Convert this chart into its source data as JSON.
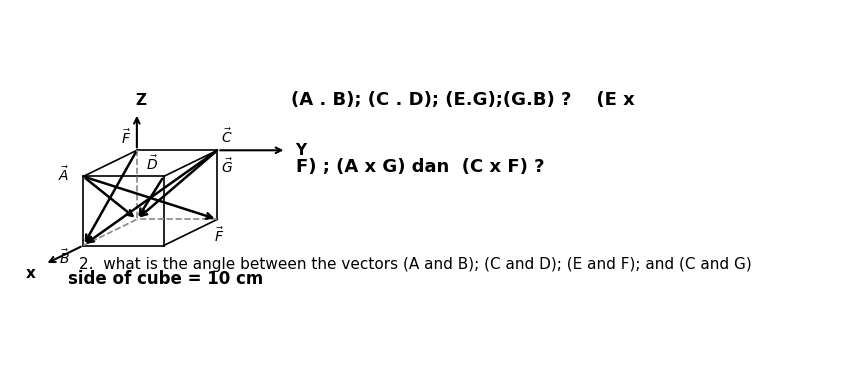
{
  "figsize": [
    8.51,
    3.79
  ],
  "dpi": 100,
  "bg_color": "#ffffff",
  "text_side_of_cube": "side of cube = 10 cm",
  "text_line1": "(A . B); (C . D); (E.G);(G.B) ?    (E x",
  "text_line2": "F) ; (A x G) dan  (C x F) ?",
  "text_line3": "2.  what is the angle between the vectors (A and B); (C and D); (E and F); and (C and G)",
  "label_Z": "Z",
  "label_Y": "Y",
  "label_X": "x",
  "label_A": "$\\vec{A}$",
  "label_B": "$\\vec{B}$",
  "label_C": "$\\vec{C}$",
  "label_D": "$\\vec{D}$",
  "label_F_top": "$\\vec{F}$",
  "label_F_bot": "$\\vec{F}$",
  "label_G": "$\\vec{G}$",
  "ox": 0.175,
  "oy": 0.42,
  "vx": [
    -0.07,
    -0.07
  ],
  "vy": [
    0.105,
    0.0
  ],
  "vz": [
    0.0,
    0.185
  ],
  "font_size_labels": 9,
  "font_size_side": 12,
  "font_size_text": 13,
  "font_size_question": 11,
  "line_color": "#000000",
  "dashed_color": "#888888",
  "line_width": 1.2,
  "arrow_lw_bold": 1.8,
  "arrow_lw_axis": 1.5
}
